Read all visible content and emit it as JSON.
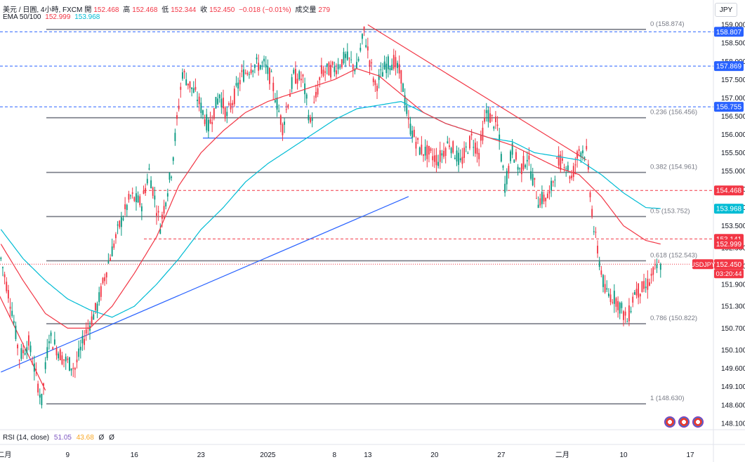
{
  "header": {
    "symbol": "美元 / 日圓, 4小時, FXCM",
    "open_label": "開",
    "open": "152.468",
    "high_label": "高",
    "high": "152.468",
    "low_label": "低",
    "low": "152.344",
    "close_label": "收",
    "close": "152.450",
    "change": "−0.018 (−0.01%)",
    "volume_label": "成交量",
    "volume": "279",
    "ema_label": "EMA 50/100",
    "ema50": "152.999",
    "ema100": "153.968"
  },
  "currency_button": "JPY",
  "rsi": {
    "label": "RSI (14, close)",
    "v1": "51.05",
    "v2": "43.68",
    "v3": "Ø",
    "v4": "Ø"
  },
  "chart_data": {
    "type": "candlestick",
    "ylim": [
      148.0,
      159.1
    ],
    "y_ticks": [
      "159.000",
      "158.500",
      "158.000",
      "157.500",
      "157.000",
      "156.500",
      "156.000",
      "155.500",
      "155.000",
      "154.500",
      "154.000",
      "153.500",
      "152.900",
      "152.400",
      "151.900",
      "151.300",
      "150.700",
      "150.100",
      "149.600",
      "149.100",
      "148.600",
      "148.100"
    ],
    "x_ticks": [
      {
        "label": "十二月",
        "i": 0
      },
      {
        "label": "9",
        "i": 36
      },
      {
        "label": "16",
        "i": 72
      },
      {
        "label": "23",
        "i": 108
      },
      {
        "label": "2025",
        "i": 144
      },
      {
        "label": "8",
        "i": 180
      },
      {
        "label": "13",
        "i": 198
      },
      {
        "label": "20",
        "i": 234
      },
      {
        "label": "27",
        "i": 270
      },
      {
        "label": "二月",
        "i": 303
      },
      {
        "label": "10",
        "i": 336
      },
      {
        "label": "17",
        "i": 372
      }
    ],
    "candle_count": 385,
    "anchors": [
      [
        0,
        152.6
      ],
      [
        6,
        151.2
      ],
      [
        10,
        149.9
      ],
      [
        15,
        150.3
      ],
      [
        22,
        148.7
      ],
      [
        26,
        150.5
      ],
      [
        33,
        149.9
      ],
      [
        40,
        149.6
      ],
      [
        46,
        150.6
      ],
      [
        52,
        151.3
      ],
      [
        58,
        152.5
      ],
      [
        64,
        153.5
      ],
      [
        70,
        154.3
      ],
      [
        76,
        154.1
      ],
      [
        80,
        155.0
      ],
      [
        86,
        153.5
      ],
      [
        92,
        155.0
      ],
      [
        98,
        157.7
      ],
      [
        106,
        157.0
      ],
      [
        112,
        156.2
      ],
      [
        118,
        157.1
      ],
      [
        122,
        156.5
      ],
      [
        130,
        157.6
      ],
      [
        136,
        157.9
      ],
      [
        142,
        157.9
      ],
      [
        146,
        157.5
      ],
      [
        152,
        156.2
      ],
      [
        158,
        157.6
      ],
      [
        163,
        157.5
      ],
      [
        167,
        156.3
      ],
      [
        173,
        157.7
      ],
      [
        180,
        157.8
      ],
      [
        186,
        158.1
      ],
      [
        192,
        157.8
      ],
      [
        196,
        158.8
      ],
      [
        202,
        157.3
      ],
      [
        208,
        157.9
      ],
      [
        212,
        158.0
      ],
      [
        216,
        157.6
      ],
      [
        220,
        156.3
      ],
      [
        226,
        155.6
      ],
      [
        230,
        155.5
      ],
      [
        236,
        155.3
      ],
      [
        242,
        155.8
      ],
      [
        248,
        155.2
      ],
      [
        254,
        155.9
      ],
      [
        258,
        155.5
      ],
      [
        262,
        156.6
      ],
      [
        268,
        156.2
      ],
      [
        272,
        154.6
      ],
      [
        276,
        155.6
      ],
      [
        280,
        155.0
      ],
      [
        284,
        155.4
      ],
      [
        290,
        154.2
      ],
      [
        296,
        154.3
      ],
      [
        300,
        155.2
      ],
      [
        304,
        155.3
      ],
      [
        308,
        154.8
      ],
      [
        312,
        155.6
      ],
      [
        316,
        155.5
      ],
      [
        320,
        153.4
      ],
      [
        326,
        151.7
      ],
      [
        332,
        151.5
      ],
      [
        338,
        150.9
      ],
      [
        342,
        151.7
      ],
      [
        348,
        151.8
      ],
      [
        352,
        152.2
      ],
      [
        356,
        152.45
      ]
    ],
    "ema50_anchors": [
      [
        0,
        153.0
      ],
      [
        12,
        152.0
      ],
      [
        24,
        151.1
      ],
      [
        36,
        150.7
      ],
      [
        48,
        150.7
      ],
      [
        60,
        151.3
      ],
      [
        72,
        152.2
      ],
      [
        84,
        153.2
      ],
      [
        96,
        154.6
      ],
      [
        108,
        155.5
      ],
      [
        120,
        156.1
      ],
      [
        132,
        156.6
      ],
      [
        144,
        156.9
      ],
      [
        156,
        157.1
      ],
      [
        168,
        157.3
      ],
      [
        180,
        157.5
      ],
      [
        192,
        157.8
      ],
      [
        204,
        157.6
      ],
      [
        216,
        157.1
      ],
      [
        228,
        156.6
      ],
      [
        240,
        156.3
      ],
      [
        252,
        156.1
      ],
      [
        264,
        155.9
      ],
      [
        276,
        155.7
      ],
      [
        288,
        155.4
      ],
      [
        300,
        155.1
      ],
      [
        312,
        154.9
      ],
      [
        324,
        154.3
      ],
      [
        336,
        153.5
      ],
      [
        348,
        153.1
      ],
      [
        356,
        153.0
      ]
    ],
    "ema100_anchors": [
      [
        0,
        153.4
      ],
      [
        12,
        152.6
      ],
      [
        24,
        152.0
      ],
      [
        36,
        151.5
      ],
      [
        48,
        151.2
      ],
      [
        60,
        151.0
      ],
      [
        72,
        151.3
      ],
      [
        84,
        151.9
      ],
      [
        96,
        152.6
      ],
      [
        108,
        153.4
      ],
      [
        120,
        154.0
      ],
      [
        132,
        154.7
      ],
      [
        144,
        155.2
      ],
      [
        156,
        155.6
      ],
      [
        168,
        156.0
      ],
      [
        180,
        156.4
      ],
      [
        192,
        156.7
      ],
      [
        204,
        156.8
      ],
      [
        216,
        156.9
      ],
      [
        228,
        156.6
      ],
      [
        240,
        156.3
      ],
      [
        252,
        156.1
      ],
      [
        264,
        155.9
      ],
      [
        276,
        155.8
      ],
      [
        288,
        155.5
      ],
      [
        300,
        155.4
      ],
      [
        312,
        155.3
      ],
      [
        324,
        154.9
      ],
      [
        336,
        154.4
      ],
      [
        348,
        154.0
      ],
      [
        356,
        153.97
      ]
    ],
    "fibonacci": [
      {
        "level": "0",
        "price": 158.874,
        "label": "0 (158.874)"
      },
      {
        "level": "0.236",
        "price": 156.456,
        "label": "0.236 (156.456)"
      },
      {
        "level": "0.382",
        "price": 154.961,
        "label": "0.382 (154.961)"
      },
      {
        "level": "0.5",
        "price": 153.752,
        "label": "0.5 (153.752)"
      },
      {
        "level": "0.618",
        "price": 152.543,
        "label": "0.618 (152.543)"
      },
      {
        "level": "0.786",
        "price": 150.822,
        "label": "0.786 (150.822)"
      },
      {
        "level": "1",
        "price": 148.63,
        "label": "1 (148.630)"
      }
    ],
    "horizontal_lines": [
      {
        "price": 158.807,
        "color": "#2962ff",
        "style": "dashed"
      },
      {
        "price": 157.869,
        "color": "#2962ff",
        "style": "dashed"
      },
      {
        "price": 156.755,
        "color": "#2962ff",
        "style": "dashed"
      },
      {
        "price": 154.468,
        "color": "#f23645",
        "style": "dashed"
      },
      {
        "price": 153.141,
        "color": "#f23645",
        "style": "dashed"
      }
    ],
    "trendlines": [
      {
        "from": [
          0,
          149.5
        ],
        "to": [
          220,
          154.3
        ],
        "color": "#2962ff"
      },
      {
        "from": [
          -60,
          158.4
        ],
        "to": [
          -10,
          159.4
        ],
        "color": "#2962ff"
      },
      {
        "from": [
          109,
          155.9
        ],
        "to": [
          222,
          155.9
        ],
        "color": "#2962ff"
      },
      {
        "from": [
          198,
          159.0
        ],
        "to": [
          316,
          155.3
        ],
        "color": "#f23645"
      },
      {
        "from": [
          -20,
          153.6
        ],
        "to": [
          24,
          149.0
        ],
        "color": "#f23645"
      }
    ],
    "price_labels": [
      {
        "text": "158.807",
        "price": 158.807,
        "bg": "#2962ff"
      },
      {
        "text": "157.869",
        "price": 157.869,
        "bg": "#2962ff"
      },
      {
        "text": "156.755",
        "price": 156.755,
        "bg": "#2962ff"
      },
      {
        "text": "154.468",
        "price": 154.468,
        "bg": "#f23645"
      },
      {
        "text": "153.968",
        "price": 153.968,
        "bg": "#00bcd4"
      },
      {
        "text": "153.141",
        "price": 153.141,
        "bg": "#f23645"
      },
      {
        "text": "152.999",
        "price": 152.999,
        "bg": "#f23645"
      },
      {
        "text": "152.450",
        "price": 152.45,
        "bg": "#f23645"
      }
    ],
    "current_price_tag": "USDJPY",
    "countdown": "03:20:44",
    "colors": {
      "up": "#089981",
      "down": "#f23645",
      "ema50": "#f23645",
      "ema100": "#00bcd4"
    }
  }
}
